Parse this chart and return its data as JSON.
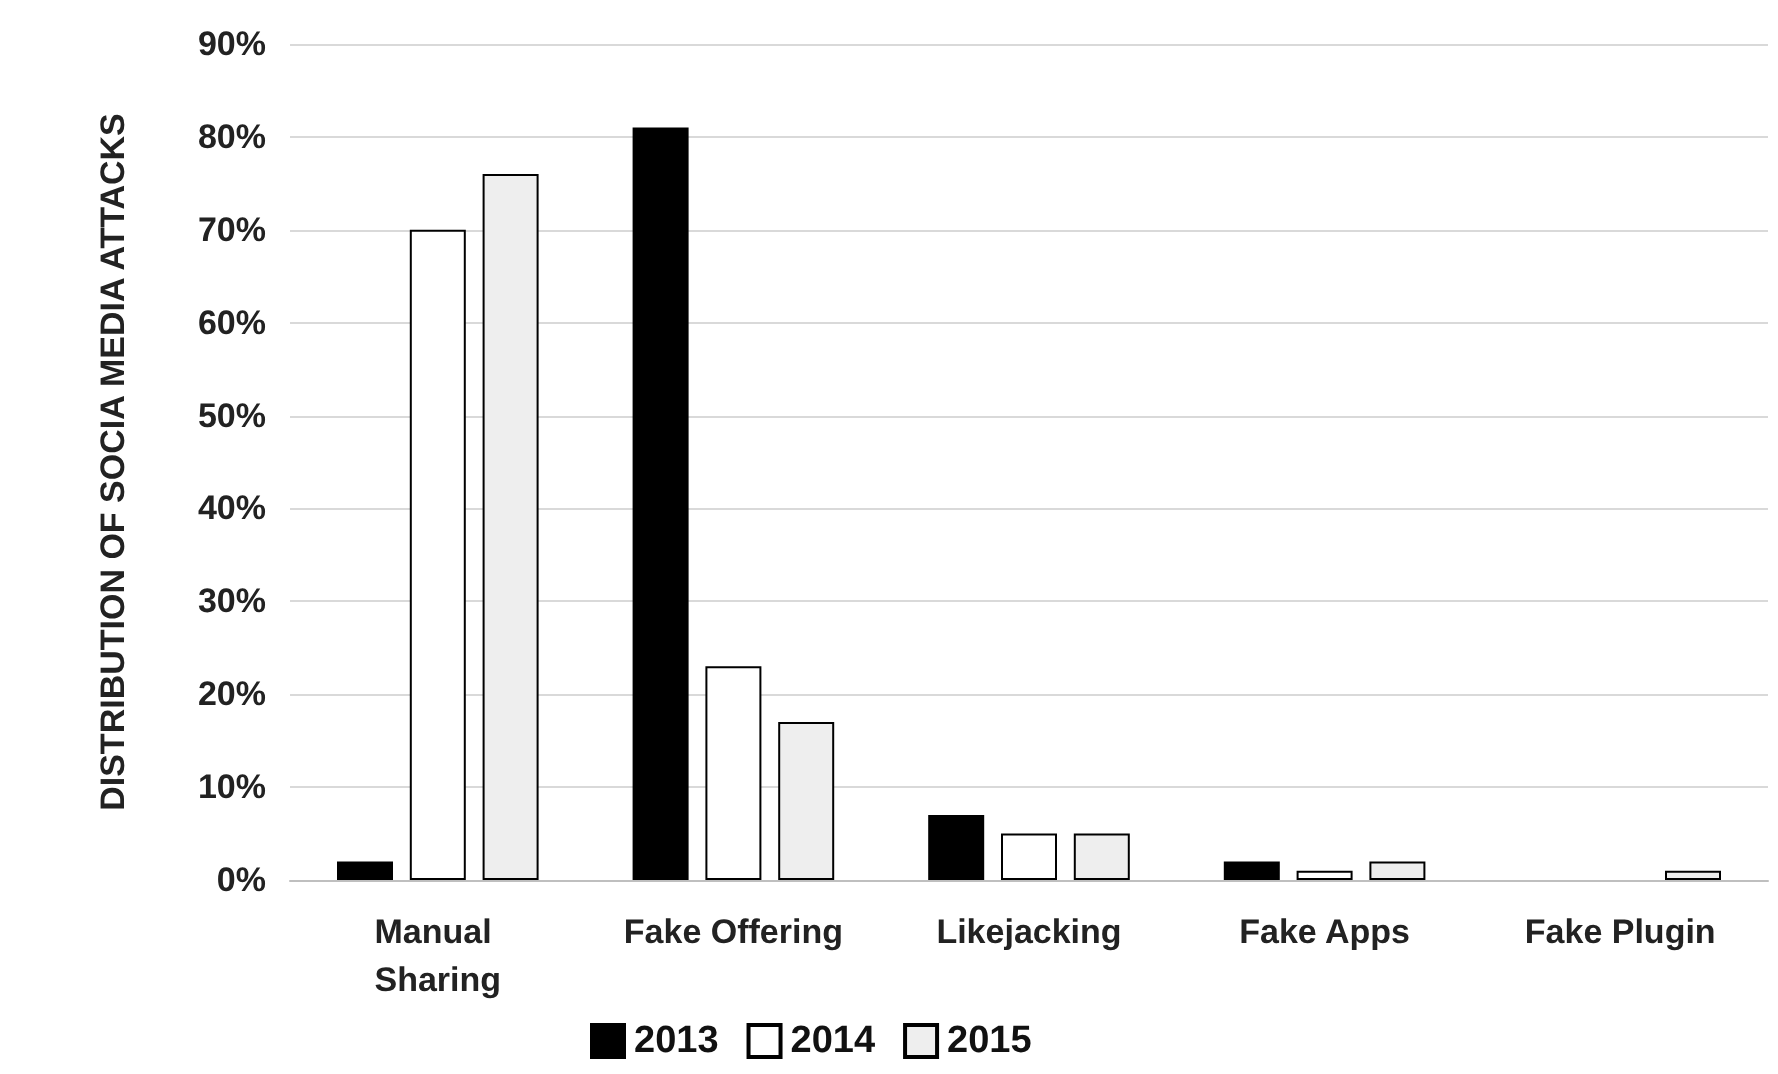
{
  "chart_data": {
    "type": "bar",
    "ylabel": "DISTRIBUTION OF SOCIA MEDIA ATTACKS",
    "categories": [
      "Manual Sharing",
      "Fake Offering",
      "Likejacking",
      "Fake Apps",
      "Fake Plugin"
    ],
    "series": [
      {
        "name": "2013",
        "color": "#000000",
        "values": [
          2,
          81,
          7,
          2,
          null
        ]
      },
      {
        "name": "2014",
        "color": "#ffffff",
        "values": [
          70,
          23,
          5,
          1,
          null
        ]
      },
      {
        "name": "2015",
        "color": "#eeeeee",
        "values": [
          76,
          17,
          5,
          2,
          1
        ]
      }
    ],
    "ylim": [
      0,
      90
    ],
    "yticks": [
      {
        "value": 0,
        "label": "0%"
      },
      {
        "value": 10,
        "label": "10%"
      },
      {
        "value": 20,
        "label": "20%"
      },
      {
        "value": 30,
        "label": "30%"
      },
      {
        "value": 40,
        "label": "40%"
      },
      {
        "value": 50,
        "label": "50%"
      },
      {
        "value": 60,
        "label": "60%"
      },
      {
        "value": 70,
        "label": "70%"
      },
      {
        "value": 80,
        "label": "80%"
      },
      {
        "value": 90,
        "label": "90%"
      }
    ],
    "grid": "y",
    "legend": "bottom"
  }
}
